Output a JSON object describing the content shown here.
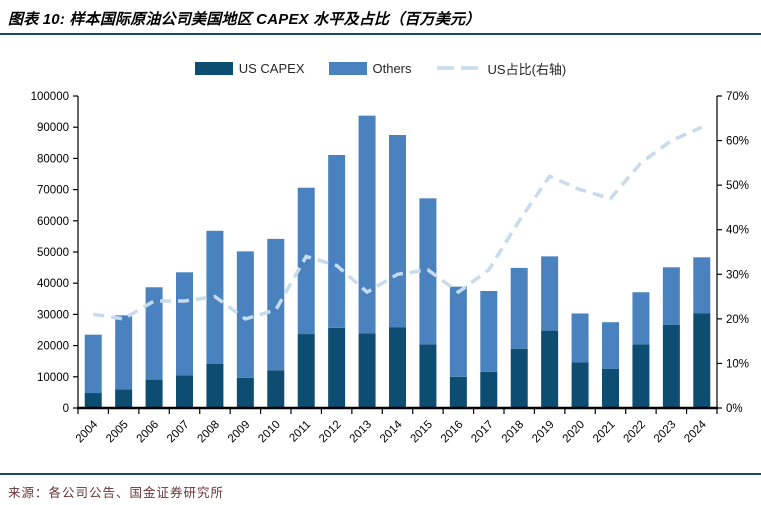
{
  "header": {
    "title": "图表 10: 样本国际原油公司美国地区 CAPEX 水平及占比（百万美元）"
  },
  "footer": {
    "source": "来源：各公司公告、国金证券研究所"
  },
  "colors": {
    "us_capex": "#0d4d72",
    "others": "#4a82bf",
    "ratio_line": "#c7dbee",
    "rule": "#0e4f66",
    "source_text": "#6b3434",
    "axis": "#000000"
  },
  "legend": {
    "items": [
      {
        "label": "US CAPEX"
      },
      {
        "label": "Others"
      },
      {
        "label": "US占比(右轴)"
      }
    ]
  },
  "chart_data": {
    "type": "bar",
    "subtype": "stacked-bars-with-line-overlay",
    "title": "样本国际原油公司美国地区CAPEX水平及占比（百万美元）",
    "categories": [
      "2004",
      "2005",
      "2006",
      "2007",
      "2008",
      "2009",
      "2010",
      "2011",
      "2012",
      "2013",
      "2014",
      "2015",
      "2016",
      "2017",
      "2018",
      "2019",
      "2020",
      "2021",
      "2022",
      "2023",
      "2024"
    ],
    "series": [
      {
        "name": "US CAPEX",
        "type": "bar",
        "stack": true,
        "axis": "left",
        "values": [
          4800,
          6000,
          9100,
          10400,
          14100,
          9700,
          12100,
          23700,
          25700,
          23900,
          25800,
          20400,
          10000,
          11600,
          19000,
          24800,
          14600,
          12600,
          20400,
          26600,
          30400
        ]
      },
      {
        "name": "Others",
        "type": "bar",
        "stack": true,
        "axis": "left",
        "values": [
          18700,
          23700,
          29600,
          33100,
          42700,
          40500,
          42100,
          46900,
          55400,
          69800,
          61700,
          46800,
          28900,
          25900,
          25900,
          23800,
          15700,
          14900,
          16700,
          18500,
          17900
        ]
      },
      {
        "name": "US占比(右轴)",
        "type": "line",
        "style": "dashed",
        "axis": "right",
        "values": [
          21,
          20,
          24,
          24,
          25,
          20,
          22,
          34,
          32,
          26,
          30,
          31,
          26,
          31,
          42,
          52,
          49,
          47,
          55,
          60,
          63
        ]
      }
    ],
    "left_axis": {
      "min": 0,
      "max": 100000,
      "step": 10000,
      "tick_labels": [
        "0",
        "10000",
        "20000",
        "30000",
        "40000",
        "50000",
        "60000",
        "70000",
        "80000",
        "90000",
        "100000"
      ]
    },
    "right_axis": {
      "min": 0,
      "max": 70,
      "step": 10,
      "format": "percent",
      "tick_labels": [
        "0%",
        "10%",
        "20%",
        "30%",
        "40%",
        "50%",
        "60%",
        "70%"
      ]
    },
    "grid": false,
    "legend_position": "top"
  }
}
